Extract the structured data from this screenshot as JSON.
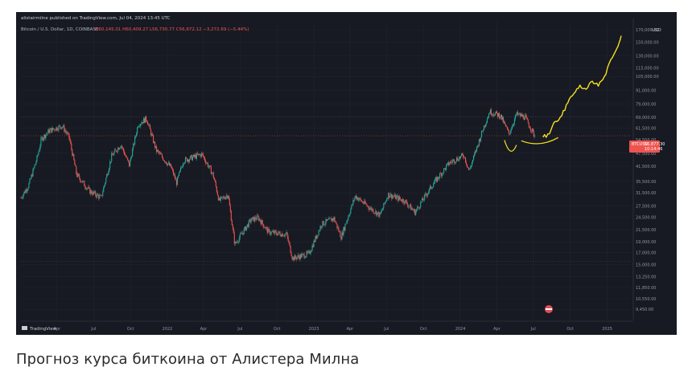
{
  "header": {
    "publish_line": "alistairmilne published on TradingView.com, Jul 04, 2024 13:45 UTC",
    "symbol_line": "Bitcoin / U.S. Dollar, 1D, COINBASE",
    "ohlc": "O60,145.01 H60,409.27 L56,730.77 C56,872.12 −3,272.69 (−5.44%)"
  },
  "price_axis": {
    "currency": "USD",
    "ticks": [
      "170,000.00",
      "150,000.00",
      "130,000.00",
      "115,000.00",
      "105,000.00",
      "91,000.00",
      "79,000.00",
      "69,000.00",
      "61,500.00",
      "54,500.00",
      "47,500.00",
      "41,500.00",
      "35,500.00",
      "31,500.00",
      "27,500.00",
      "24,500.00",
      "21,500.00",
      "19,000.00",
      "17,000.00",
      "15,000.00",
      "13,250.00",
      "11,850.00",
      "10,550.00",
      "9,450.00"
    ],
    "last_price_symbol": "BTCUSD",
    "last_price_value": "56,877.30",
    "last_price_countdown": "10:14:46"
  },
  "time_axis": {
    "ticks": [
      "Apr",
      "Jul",
      "Oct",
      "2022",
      "Apr",
      "Jul",
      "Oct",
      "2023",
      "Apr",
      "Jul",
      "Oct",
      "2024",
      "Apr",
      "Jul",
      "Oct",
      "2025"
    ]
  },
  "watermark": "TradingView",
  "caption": "Прогноз курса биткоина от Алистера Милна",
  "colors": {
    "background": "#171a22",
    "up": "#26a69a",
    "down": "#ef5350",
    "forecast": "#f5e11f",
    "grid": "#22262f",
    "text": "#8f96a3",
    "last_price_tag": "#ef5350"
  },
  "chart_data": {
    "type": "candlestick",
    "x_unit": "date",
    "y_scale": "log",
    "ylim": [
      8500,
      185000
    ],
    "xlim": [
      "2021-01-01",
      "2025-03-01"
    ],
    "price_path": [
      {
        "x": "2021-01-01",
        "y": 30000
      },
      {
        "x": "2021-01-20",
        "y": 34000
      },
      {
        "x": "2021-02-10",
        "y": 45000
      },
      {
        "x": "2021-02-21",
        "y": 55000
      },
      {
        "x": "2021-03-13",
        "y": 60000
      },
      {
        "x": "2021-04-14",
        "y": 63000
      },
      {
        "x": "2021-05-01",
        "y": 56000
      },
      {
        "x": "2021-05-20",
        "y": 38000
      },
      {
        "x": "2021-06-22",
        "y": 32000
      },
      {
        "x": "2021-07-20",
        "y": 30000
      },
      {
        "x": "2021-08-15",
        "y": 46000
      },
      {
        "x": "2021-09-07",
        "y": 52000
      },
      {
        "x": "2021-09-28",
        "y": 42000
      },
      {
        "x": "2021-10-20",
        "y": 64000
      },
      {
        "x": "2021-11-10",
        "y": 68000
      },
      {
        "x": "2021-12-04",
        "y": 49000
      },
      {
        "x": "2022-01-10",
        "y": 41000
      },
      {
        "x": "2022-01-24",
        "y": 35000
      },
      {
        "x": "2022-02-10",
        "y": 44000
      },
      {
        "x": "2022-03-28",
        "y": 47000
      },
      {
        "x": "2022-04-25",
        "y": 38000
      },
      {
        "x": "2022-05-10",
        "y": 29000
      },
      {
        "x": "2022-06-01",
        "y": 31000
      },
      {
        "x": "2022-06-18",
        "y": 18500
      },
      {
        "x": "2022-07-28",
        "y": 23800
      },
      {
        "x": "2022-08-15",
        "y": 24400
      },
      {
        "x": "2022-09-10",
        "y": 21000
      },
      {
        "x": "2022-10-25",
        "y": 20500
      },
      {
        "x": "2022-11-09",
        "y": 16000
      },
      {
        "x": "2022-12-20",
        "y": 16800
      },
      {
        "x": "2023-01-20",
        "y": 22800
      },
      {
        "x": "2023-02-20",
        "y": 24200
      },
      {
        "x": "2023-03-10",
        "y": 20000
      },
      {
        "x": "2023-04-14",
        "y": 30500
      },
      {
        "x": "2023-05-20",
        "y": 27000
      },
      {
        "x": "2023-06-15",
        "y": 25000
      },
      {
        "x": "2023-07-05",
        "y": 31000
      },
      {
        "x": "2023-08-15",
        "y": 29000
      },
      {
        "x": "2023-09-10",
        "y": 25800
      },
      {
        "x": "2023-10-25",
        "y": 34500
      },
      {
        "x": "2023-12-05",
        "y": 43000
      },
      {
        "x": "2024-01-10",
        "y": 46500
      },
      {
        "x": "2024-01-23",
        "y": 39500
      },
      {
        "x": "2024-02-28",
        "y": 62000
      },
      {
        "x": "2024-03-14",
        "y": 73000
      },
      {
        "x": "2024-04-10",
        "y": 70000
      },
      {
        "x": "2024-05-01",
        "y": 58000
      },
      {
        "x": "2024-05-20",
        "y": 71000
      },
      {
        "x": "2024-06-10",
        "y": 69000
      },
      {
        "x": "2024-07-04",
        "y": 56877
      }
    ],
    "forecast_path": [
      {
        "x": "2024-07-25",
        "y": 56000
      },
      {
        "x": "2024-08-10",
        "y": 58000
      },
      {
        "x": "2024-08-25",
        "y": 66000
      },
      {
        "x": "2024-09-10",
        "y": 70000
      },
      {
        "x": "2024-09-25",
        "y": 80000
      },
      {
        "x": "2024-10-10",
        "y": 88000
      },
      {
        "x": "2024-10-25",
        "y": 96000
      },
      {
        "x": "2024-11-10",
        "y": 92000
      },
      {
        "x": "2024-11-25",
        "y": 100000
      },
      {
        "x": "2024-12-10",
        "y": 95000
      },
      {
        "x": "2024-12-25",
        "y": 105000
      },
      {
        "x": "2025-01-10",
        "y": 125000
      },
      {
        "x": "2025-01-25",
        "y": 140000
      },
      {
        "x": "2025-02-05",
        "y": 160000
      }
    ],
    "annotations": [
      {
        "shape": "arc",
        "x_start": "2024-04-20",
        "x_end": "2024-05-20",
        "y": 50000
      },
      {
        "shape": "arc",
        "x_start": "2024-06-01",
        "x_end": "2024-09-01",
        "y": 54000
      }
    ]
  }
}
